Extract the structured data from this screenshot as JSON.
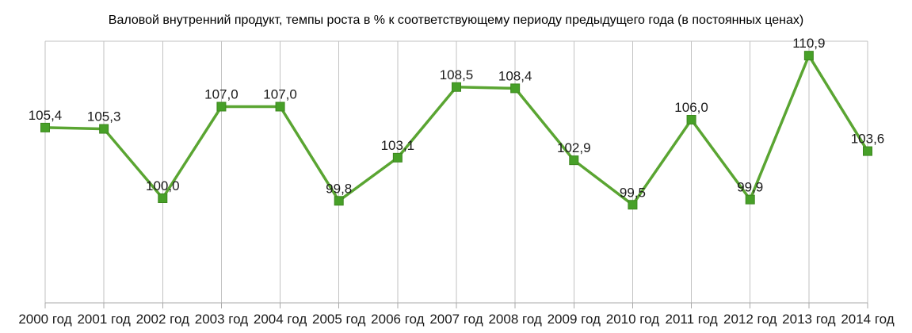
{
  "chart_data": {
    "type": "line",
    "title": "Валовой внутренний продукт, темпы роста в % к соответствующему периоду предыдущего года (в постоянных ценах)",
    "categories": [
      "2000 год",
      "2001 год",
      "2002 год",
      "2003 год",
      "2004 год",
      "2005 год",
      "2006 год",
      "2007 год",
      "2008 год",
      "2009 год",
      "2010 год",
      "2011 год",
      "2012 год",
      "2013 год",
      "2014 год"
    ],
    "values": [
      105.4,
      105.3,
      100.0,
      107.0,
      107.0,
      99.8,
      103.1,
      108.5,
      108.4,
      102.9,
      99.5,
      106.0,
      99.9,
      110.9,
      103.6
    ],
    "data_labels": [
      "105,4",
      "105,3",
      "100,0",
      "107,0",
      "107,0",
      "99,8",
      "103,1",
      "108,5",
      "108,4",
      "102,9",
      "99,5",
      "106,0",
      "99,9",
      "110,9",
      "103,6"
    ],
    "xlabel": "",
    "ylabel": "",
    "ylim": [
      92,
      112
    ],
    "legend": "none",
    "grid": "vertical-only",
    "marker_shape": "square",
    "colors": {
      "line": "#5aa532",
      "marker_fill": "#47a028",
      "marker_border": "#3c871e",
      "grid_line": "#c2c2c2",
      "axis_line": "#a8a8a8",
      "label_text": "#1a1a1a",
      "title_text": "#000000",
      "background": "#ffffff"
    }
  }
}
